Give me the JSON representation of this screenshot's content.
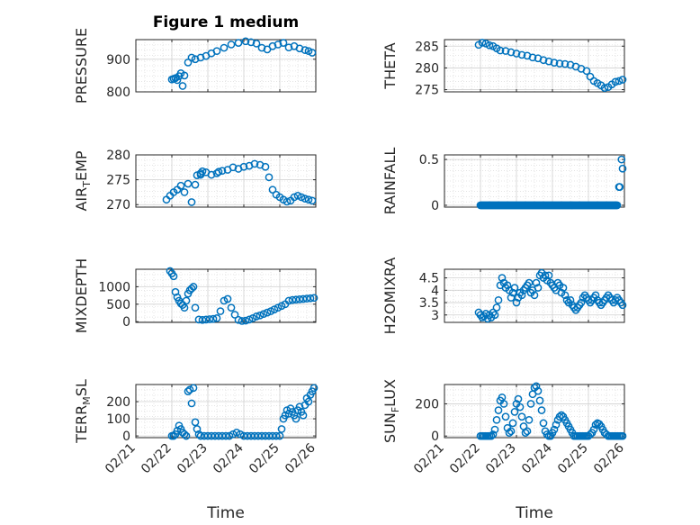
{
  "figure": {
    "title": "Figure 1 medium",
    "xlabel": "Time",
    "marker_color": "#0072BD",
    "date_ticks": [
      "02/21",
      "02/22",
      "02/23",
      "02/24",
      "02/25",
      "02/26"
    ]
  },
  "chart_data": [
    {
      "id": "pressure",
      "type": "scatter",
      "ylabel": "PRESSURE",
      "ylim": [
        800,
        960
      ],
      "yticks": [
        800,
        900
      ],
      "x": [
        1.0,
        1.05,
        1.1,
        1.15,
        1.2,
        1.25,
        1.3,
        1.35,
        1.45,
        1.55,
        1.65,
        1.8,
        1.95,
        2.1,
        2.25,
        2.45,
        2.65,
        2.85,
        3.05,
        3.2,
        3.35,
        3.5,
        3.65,
        3.8,
        3.95,
        4.1,
        4.25,
        4.4,
        4.55,
        4.7,
        4.8,
        4.9
      ],
      "y": [
        838,
        840,
        842,
        836,
        848,
        857,
        818,
        850,
        890,
        905,
        900,
        905,
        910,
        918,
        925,
        935,
        945,
        950,
        955,
        952,
        948,
        935,
        930,
        940,
        945,
        950,
        936,
        940,
        933,
        928,
        925,
        920
      ]
    },
    {
      "id": "theta",
      "type": "scatter",
      "ylabel": "THETA",
      "ylim": [
        274.5,
        286.5
      ],
      "yticks": [
        275,
        280,
        285
      ],
      "x": [
        0.95,
        1.05,
        1.15,
        1.25,
        1.35,
        1.45,
        1.55,
        1.7,
        1.85,
        2.0,
        2.15,
        2.3,
        2.45,
        2.6,
        2.75,
        2.9,
        3.05,
        3.2,
        3.35,
        3.5,
        3.65,
        3.8,
        3.95,
        4.05,
        4.15,
        4.25,
        4.35,
        4.45,
        4.55,
        4.65,
        4.75,
        4.85,
        4.95
      ],
      "y": [
        285.3,
        285.8,
        285.6,
        285.2,
        285.0,
        284.5,
        284.0,
        283.9,
        283.6,
        283.3,
        283.0,
        282.8,
        282.4,
        282.2,
        281.8,
        281.5,
        281.2,
        281.0,
        280.9,
        280.7,
        280.3,
        279.8,
        279.3,
        278.0,
        277.0,
        276.5,
        276.0,
        275.4,
        275.6,
        276.2,
        276.8,
        277.0,
        277.3
      ]
    },
    {
      "id": "air_temp",
      "type": "scatter",
      "ylabel_main": "AIR",
      "ylabel_sub": "T",
      "ylabel_rest": "EMP",
      "ylim": [
        269.5,
        280
      ],
      "yticks": [
        270,
        275,
        280
      ],
      "x": [
        0.85,
        0.95,
        1.05,
        1.15,
        1.25,
        1.35,
        1.45,
        1.55,
        1.65,
        1.8,
        1.95,
        2.1,
        2.25,
        2.4,
        2.55,
        2.7,
        2.85,
        3.0,
        3.15,
        3.3,
        3.45,
        3.6,
        3.7,
        3.8,
        3.9,
        4.0,
        4.1,
        4.2,
        4.3,
        4.4,
        4.5,
        4.6,
        4.7,
        4.8,
        4.9
      ],
      "y": [
        271.0,
        271.8,
        272.5,
        273.0,
        273.8,
        272.5,
        274.2,
        270.5,
        274.0,
        276.0,
        276.5,
        276.0,
        276.3,
        276.8,
        277.0,
        277.5,
        277.2,
        277.6,
        277.8,
        278.2,
        278.0,
        277.6,
        275.5,
        273.0,
        272.0,
        271.5,
        271.0,
        270.6,
        270.8,
        271.5,
        271.8,
        271.5,
        271.2,
        271.0,
        270.8
      ],
      "extra_x": [
        1.8,
        1.85,
        1.7,
        2.3
      ],
      "extra_y": [
        276.3,
        276.7,
        275.9,
        276.6
      ]
    },
    {
      "id": "rainfall",
      "type": "scatter",
      "ylabel": "RAINFALL",
      "ylim": [
        -0.02,
        0.55
      ],
      "yticks": [
        0,
        0.5
      ],
      "ytick_labels": [
        "0",
        "0.5"
      ],
      "x_start": 1.0,
      "x_end": 4.8,
      "baseline": 0,
      "x": [
        4.85,
        4.87,
        4.92,
        4.95
      ],
      "y": [
        0.2,
        0.2,
        0.5,
        0.4
      ]
    },
    {
      "id": "mixdepth",
      "type": "scatter",
      "ylabel": "MIXDEPTH",
      "ylim": [
        -20,
        1500
      ],
      "yticks": [
        0,
        500,
        1000
      ],
      "x": [
        0.95,
        1.0,
        1.05,
        1.1,
        1.15,
        1.2,
        1.25,
        1.3,
        1.35,
        1.4,
        1.45,
        1.5,
        1.55,
        1.6,
        1.65,
        1.75,
        1.85,
        1.95,
        2.05,
        2.15,
        2.25,
        2.35,
        2.45,
        2.55,
        2.65,
        2.75,
        2.85,
        2.95,
        3.05,
        3.15,
        3.25,
        3.35,
        3.45,
        3.55,
        3.65,
        3.75,
        3.85,
        3.95,
        4.05,
        4.15,
        4.25,
        4.35,
        4.45,
        4.55,
        4.65,
        4.75,
        4.85,
        4.95
      ],
      "y": [
        1450,
        1380,
        1300,
        850,
        700,
        600,
        520,
        480,
        400,
        600,
        800,
        900,
        950,
        1000,
        400,
        60,
        50,
        60,
        70,
        80,
        100,
        300,
        600,
        650,
        400,
        200,
        50,
        20,
        30,
        60,
        100,
        150,
        180,
        220,
        260,
        300,
        350,
        400,
        450,
        500,
        600,
        620,
        630,
        640,
        650,
        660,
        670,
        680
      ]
    },
    {
      "id": "h2omixra",
      "type": "scatter",
      "ylabel": "H2OMIXRA",
      "ylim": [
        2.7,
        4.85
      ],
      "yticks": [
        3,
        3.5,
        4,
        4.5
      ],
      "x": [
        0.95,
        1.0,
        1.05,
        1.1,
        1.15,
        1.2,
        1.25,
        1.3,
        1.35,
        1.4,
        1.45,
        1.5,
        1.55,
        1.6,
        1.65,
        1.7,
        1.75,
        1.8,
        1.85,
        1.9,
        1.95,
        2.0,
        2.05,
        2.1,
        2.15,
        2.2,
        2.25,
        2.3,
        2.35,
        2.4,
        2.45,
        2.5,
        2.55,
        2.6,
        2.65,
        2.7,
        2.75,
        2.8,
        2.85,
        2.9,
        2.95,
        3.0,
        3.05,
        3.1,
        3.15,
        3.2,
        3.25,
        3.3,
        3.35,
        3.4,
        3.45,
        3.5,
        3.55,
        3.6,
        3.65,
        3.7,
        3.75,
        3.8,
        3.85,
        3.9,
        3.95,
        4.0,
        4.05,
        4.1,
        4.15,
        4.2,
        4.25,
        4.3,
        4.35,
        4.4,
        4.45,
        4.5,
        4.55,
        4.6,
        4.65,
        4.7,
        4.75,
        4.8,
        4.85,
        4.9,
        4.95
      ],
      "y": [
        3.1,
        3.0,
        2.9,
        2.95,
        3.05,
        2.85,
        3.0,
        2.9,
        3.1,
        3.0,
        3.3,
        3.6,
        4.2,
        4.5,
        4.3,
        4.1,
        4.2,
        4.0,
        3.7,
        3.9,
        4.1,
        3.5,
        3.7,
        3.9,
        3.8,
        4.0,
        4.1,
        4.2,
        4.3,
        3.9,
        4.0,
        3.8,
        4.3,
        4.1,
        4.6,
        4.7,
        4.5,
        4.6,
        4.4,
        4.6,
        4.3,
        4.2,
        4.1,
        4.0,
        4.3,
        4.2,
        3.9,
        4.1,
        3.8,
        3.6,
        3.5,
        3.6,
        3.4,
        3.3,
        3.2,
        3.3,
        3.4,
        3.5,
        3.7,
        3.8,
        3.7,
        3.6,
        3.5,
        3.6,
        3.7,
        3.8,
        3.6,
        3.5,
        3.4,
        3.5,
        3.6,
        3.7,
        3.8,
        3.7,
        3.6,
        3.5,
        3.6,
        3.7,
        3.6,
        3.5,
        3.4
      ]
    },
    {
      "id": "terr_msl",
      "type": "scatter",
      "ylabel_main": "TERR",
      "ylabel_sub": "M",
      "ylabel_rest": "SL",
      "ylim": [
        -10,
        300
      ],
      "yticks": [
        0,
        100,
        200
      ],
      "x": [
        1.0,
        1.05,
        1.1,
        1.15,
        1.2,
        1.25,
        1.3,
        1.35,
        1.4,
        1.45,
        1.5,
        1.55,
        1.6,
        1.65,
        1.7,
        1.75,
        1.8,
        1.9,
        2.0,
        2.1,
        2.2,
        2.3,
        2.4,
        2.5,
        2.6,
        2.7,
        2.8,
        2.9,
        3.0,
        3.1,
        3.2,
        3.3,
        3.4,
        3.5,
        3.6,
        3.7,
        3.8,
        3.9,
        4.0,
        4.05,
        4.1,
        4.15,
        4.2,
        4.25,
        4.3,
        4.35,
        4.4,
        4.45,
        4.5,
        4.55,
        4.6,
        4.65,
        4.7,
        4.75,
        4.8,
        4.85,
        4.9,
        4.95
      ],
      "y": [
        0,
        0,
        10,
        30,
        60,
        40,
        20,
        10,
        0,
        260,
        270,
        190,
        280,
        80,
        40,
        10,
        0,
        0,
        0,
        0,
        0,
        0,
        0,
        0,
        0,
        10,
        20,
        10,
        0,
        0,
        0,
        0,
        0,
        0,
        0,
        0,
        0,
        0,
        0,
        40,
        100,
        120,
        150,
        130,
        160,
        140,
        120,
        100,
        150,
        170,
        140,
        120,
        180,
        220,
        200,
        240,
        260,
        280
      ]
    },
    {
      "id": "sun_flux",
      "type": "scatter",
      "ylabel_main": "SUN",
      "ylabel_sub": "F",
      "ylabel_rest": "LUX",
      "ylim": [
        -10,
        320
      ],
      "yticks": [
        0,
        200
      ],
      "x": [
        1.0,
        1.05,
        1.1,
        1.15,
        1.2,
        1.25,
        1.3,
        1.35,
        1.4,
        1.45,
        1.5,
        1.55,
        1.6,
        1.65,
        1.7,
        1.75,
        1.8,
        1.85,
        1.9,
        1.95,
        2.0,
        2.05,
        2.1,
        2.15,
        2.2,
        2.25,
        2.3,
        2.35,
        2.4,
        2.45,
        2.5,
        2.55,
        2.6,
        2.65,
        2.7,
        2.75,
        2.8,
        2.85,
        2.9,
        2.95,
        3.0,
        3.05,
        3.1,
        3.15,
        3.2,
        3.25,
        3.3,
        3.35,
        3.4,
        3.45,
        3.5,
        3.55,
        3.6,
        3.65,
        3.7,
        3.75,
        3.8,
        3.85,
        3.9,
        3.95,
        4.0,
        4.05,
        4.1,
        4.15,
        4.2,
        4.25,
        4.3,
        4.35,
        4.4,
        4.45,
        4.5,
        4.55,
        4.6,
        4.65,
        4.7,
        4.75,
        4.8,
        4.85,
        4.9,
        4.95
      ],
      "y": [
        0,
        0,
        0,
        0,
        0,
        0,
        0,
        10,
        40,
        100,
        160,
        220,
        240,
        200,
        120,
        50,
        20,
        30,
        80,
        150,
        200,
        230,
        180,
        120,
        60,
        20,
        30,
        100,
        200,
        260,
        300,
        310,
        280,
        220,
        160,
        80,
        30,
        10,
        0,
        0,
        20,
        40,
        70,
        100,
        120,
        130,
        120,
        100,
        80,
        60,
        40,
        20,
        0,
        0,
        0,
        0,
        0,
        0,
        0,
        0,
        0,
        10,
        20,
        40,
        70,
        80,
        75,
        60,
        40,
        20,
        10,
        0,
        0,
        0,
        0,
        0,
        0,
        0,
        0,
        0
      ]
    }
  ]
}
